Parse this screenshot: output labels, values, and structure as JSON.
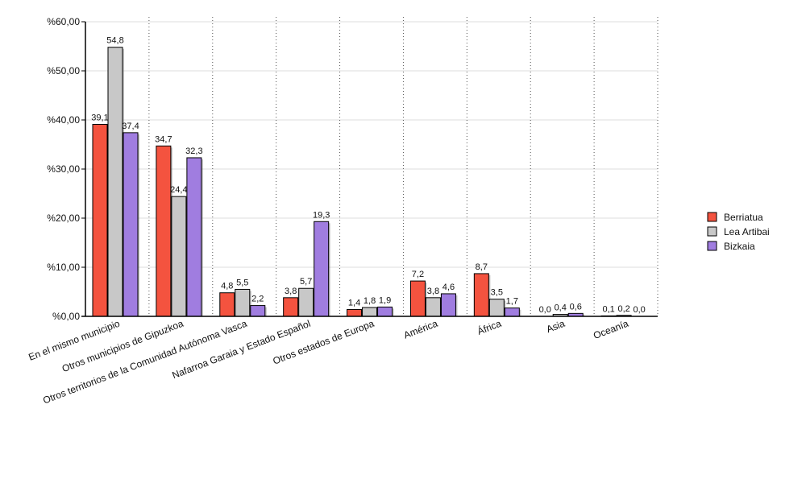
{
  "chart_data": {
    "type": "bar",
    "title": "",
    "xlabel": "",
    "ylabel": "",
    "ylim": [
      0,
      60
    ],
    "y_ticks": [
      0,
      10,
      20,
      30,
      40,
      50,
      60
    ],
    "y_tick_labels": [
      "%0,00",
      "%10,00",
      "%20,00",
      "%30,00",
      "%40,00",
      "%50,00",
      "%60,00"
    ],
    "grid": true,
    "legend_position": "right",
    "categories": [
      "En el mismo municipio",
      "Otros municipios de Gipuzkoa",
      "Otros territorios de la Comunidad Autónoma Vasca",
      "Nafarroa Garaia y Estado Español",
      "Otros estados de Europa",
      "América",
      "África",
      "Asia",
      "Oceanía"
    ],
    "series": [
      {
        "name": "Berriatua",
        "color": "#f4533f",
        "values": [
          39.1,
          34.7,
          4.8,
          3.8,
          1.4,
          7.2,
          8.7,
          0.0,
          0.1
        ],
        "labels": [
          "39,1",
          "34,7",
          "4,8",
          "3,8",
          "1,4",
          "7,2",
          "8,7",
          "0,0",
          "0,1"
        ]
      },
      {
        "name": "Lea Artibai",
        "color": "#c8c8c8",
        "values": [
          54.8,
          24.4,
          5.5,
          5.7,
          1.8,
          3.8,
          3.5,
          0.4,
          0.2
        ],
        "labels": [
          "54,8",
          "24,4",
          "5,5",
          "5,7",
          "1,8",
          "3,8",
          "3,5",
          "0,4",
          "0,2"
        ]
      },
      {
        "name": "Bizkaia",
        "color": "#a07de0",
        "values": [
          37.4,
          32.3,
          2.2,
          19.3,
          1.9,
          4.6,
          1.7,
          0.6,
          0.0
        ],
        "labels": [
          "37,4",
          "32,3",
          "2,2",
          "19,3",
          "1,9",
          "4,6",
          "1,7",
          "0,6",
          "0,0"
        ]
      }
    ]
  }
}
